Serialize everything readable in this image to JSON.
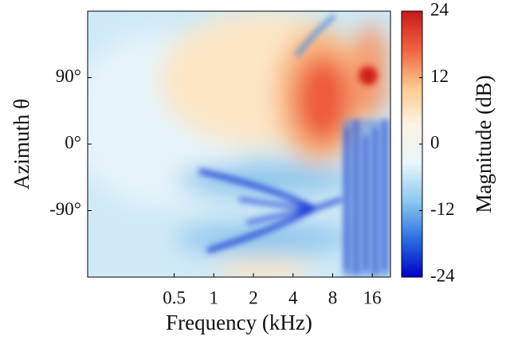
{
  "chart_data": {
    "type": "heatmap",
    "x_label": "Frequency (kHz)",
    "y_label": "Azimuth θ",
    "xscale": "log",
    "xlim": [
      0.11,
      22
    ],
    "xticks": [
      0.5,
      1,
      2,
      4,
      8,
      16
    ],
    "ylim": [
      -180,
      180
    ],
    "yticks": [
      {
        "value": 90,
        "label": "90°"
      },
      {
        "value": 0,
        "label": "0°"
      },
      {
        "value": -90,
        "label": "-90°"
      }
    ],
    "colorbar": {
      "label": "Magnitude (dB)",
      "lim": [
        -24,
        24
      ],
      "ticks": [
        24,
        12,
        0,
        -12,
        -24
      ],
      "colormap": [
        "#0000c8",
        "#2a6fe0",
        "#8cc8ee",
        "#e8f6fb",
        "#fdf3e3",
        "#fcc98e",
        "#f0603e",
        "#c81a1a"
      ]
    }
  }
}
